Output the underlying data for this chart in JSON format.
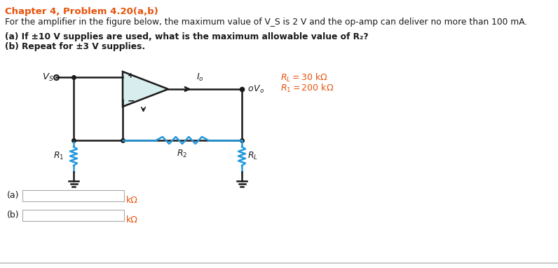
{
  "title": "Chapter 4, Problem 4.20(a,b)",
  "title_color": "#E8520A",
  "line1": "For the amplifier in the figure below, the maximum value of V_S is 2 V and the op-amp can deliver no more than 100 mA.",
  "line2a": "(a) If ±10 V supplies are used, what is the maximum allowable value of R₂?",
  "line2b": "(b) Repeat for ±3 V supplies.",
  "RL_label": "R_L = 30 kΩ",
  "R1_label": "R_1 = 200 kΩ",
  "answer_a_label": "(a)",
  "answer_b_label": "(b)",
  "answer_unit": "kΩ",
  "background_color": "#ffffff",
  "circuit_color": "#1a1a1a",
  "resistor_color": "#2299DD",
  "opamp_fill": "#d8eeee",
  "text_color": "#1a1a1a",
  "orange_color": "#E8520A"
}
